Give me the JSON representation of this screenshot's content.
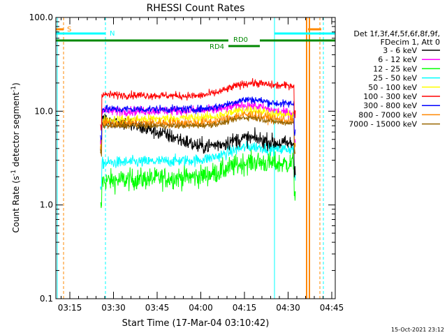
{
  "chart_data": {
    "type": "line",
    "title": "RHESSI Count Rates",
    "xlabel": "Start Time (17-Mar-04 03:10:42)",
    "ylabel": "Count Rate (s⁻¹ detector segment⁻¹)",
    "ylabel_parts": {
      "main": "Count Rate (s",
      "sup1": "-1",
      "mid": " detector segment",
      "sup2": "-1",
      "end": ")"
    },
    "yscale": "log",
    "ylim": [
      0.1,
      100.0
    ],
    "xlim_min": [
      3.17,
      4.77
    ],
    "x_ticks": [
      "03:15",
      "03:30",
      "03:45",
      "04:00",
      "04:15",
      "04:30",
      "04:45"
    ],
    "x_tick_values_min_after_3h": [
      15,
      30,
      45,
      60,
      75,
      90,
      105
    ],
    "y_ticks": [
      "0.1",
      "1.0",
      "10.0",
      "100.0"
    ],
    "y_tick_values": [
      0.1,
      1.0,
      10.0,
      100.0
    ],
    "timestamp": "15-Oct-2021 23:12",
    "legend": {
      "placement": "right",
      "header": [
        "Det 1f,3f,4f,5f,6f,8f,9f,",
        "FDecim 1, Att 0"
      ],
      "entries": [
        {
          "label": "3 - 6 keV",
          "color": "#000000"
        },
        {
          "label": "6 - 12 keV",
          "color": "#ff00ff"
        },
        {
          "label": "12 - 25 keV",
          "color": "#00ff00"
        },
        {
          "label": "25 - 50 keV",
          "color": "#00ffff"
        },
        {
          "label": "50 - 100 keV",
          "color": "#ffff00"
        },
        {
          "label": "100 - 300 keV",
          "color": "#ff0000"
        },
        {
          "label": "300 - 800 keV",
          "color": "#0000ff"
        },
        {
          "label": "800 - 7000 keV",
          "color": "#ff8800"
        },
        {
          "label": "7000 - 15000 keV",
          "color": "#996600"
        }
      ]
    },
    "annotations": {
      "S_label": "S",
      "N_label": "N",
      "RD0_label": "RD0",
      "RD4_label": "RD4",
      "S_color": "#ff8800",
      "N_color": "#00ffff",
      "RD_color": "#008800"
    },
    "series": [
      {
        "name": "3 - 6 keV",
        "color": "#000000",
        "level_start": 8.5,
        "level_mid": 4.2,
        "level_end": 4.5,
        "noise": 0.08
      },
      {
        "name": "6 - 12 keV",
        "color": "#ff00ff",
        "level_start": 10.0,
        "level_mid": 10.2,
        "level_end": 9.5,
        "noise": 0.05
      },
      {
        "name": "12 - 25 keV",
        "color": "#00ff00",
        "level_start": 1.8,
        "level_mid": 2.0,
        "level_end": 2.8,
        "noise": 0.11
      },
      {
        "name": "25 - 50 keV",
        "color": "#00ffff",
        "level_start": 2.8,
        "level_mid": 3.0,
        "level_end": 4.0,
        "noise": 0.06
      },
      {
        "name": "50 - 100 keV",
        "color": "#ffff00",
        "level_start": 8.0,
        "level_mid": 8.5,
        "level_end": 9.0,
        "noise": 0.05
      },
      {
        "name": "100 - 300 keV",
        "color": "#ff0000",
        "level_start": 15.0,
        "level_mid": 14.5,
        "level_end": 19.0,
        "noise": 0.04
      },
      {
        "name": "300 - 800 keV",
        "color": "#0000ff",
        "level_start": 10.5,
        "level_mid": 10.5,
        "level_end": 12.0,
        "noise": 0.04
      },
      {
        "name": "800 - 7000 keV",
        "color": "#ff8800",
        "level_start": 7.5,
        "level_mid": 7.5,
        "level_end": 8.0,
        "noise": 0.05
      },
      {
        "name": "7000 - 15000 keV",
        "color": "#996600",
        "level_start": 7.0,
        "level_mid": 7.0,
        "level_end": 7.5,
        "noise": 0.03
      }
    ],
    "series_time_range_min": [
      25.5,
      92.5
    ]
  }
}
